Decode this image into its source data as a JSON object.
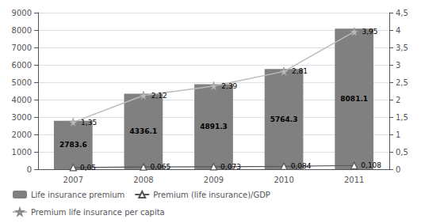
{
  "chart_data": {
    "type": "bar",
    "categories": [
      "2007",
      "2008",
      "2009",
      "2010",
      "2011"
    ],
    "series": [
      {
        "name": "Life insurance premium",
        "type": "bar",
        "color": "#808080",
        "values": [
          2783.6,
          4336.1,
          4891.3,
          5764.3,
          8081.1
        ]
      },
      {
        "name": "Premium (life insurance)/GDP",
        "type": "line",
        "axis": "y2",
        "color": "#555555",
        "marker": "triangle",
        "values": [
          0.05,
          0.065,
          0.073,
          0.084,
          0.108
        ],
        "value_labels": [
          "0,05",
          "0,065",
          "0,073",
          "0,084",
          "0,108"
        ]
      },
      {
        "name": "Premium life insurance per capita",
        "type": "line",
        "axis": "y2",
        "color": "#bbbbbb",
        "marker": "star",
        "values": [
          1.35,
          2.12,
          2.39,
          2.81,
          3.95
        ],
        "value_labels": [
          "1,35",
          "2,12",
          "2,39",
          "2,81",
          "3,95"
        ]
      }
    ],
    "ylim": [
      0,
      9000
    ],
    "yticks": [
      0,
      1000,
      2000,
      3000,
      4000,
      5000,
      6000,
      7000,
      8000,
      9000
    ],
    "y2lim": [
      0,
      4.5
    ],
    "y2ticks": [
      0,
      {
        "value": 0.5,
        "label": "0,5"
      },
      1,
      {
        "value": 1.5,
        "label": "1,5"
      },
      2,
      {
        "value": 2.5,
        "label": "2,5"
      },
      3,
      {
        "value": 3.5,
        "label": "3,5"
      },
      4,
      {
        "value": 4.5,
        "label": "4,5"
      }
    ],
    "grid": true,
    "legend": "lower left",
    "data_labels": true
  }
}
